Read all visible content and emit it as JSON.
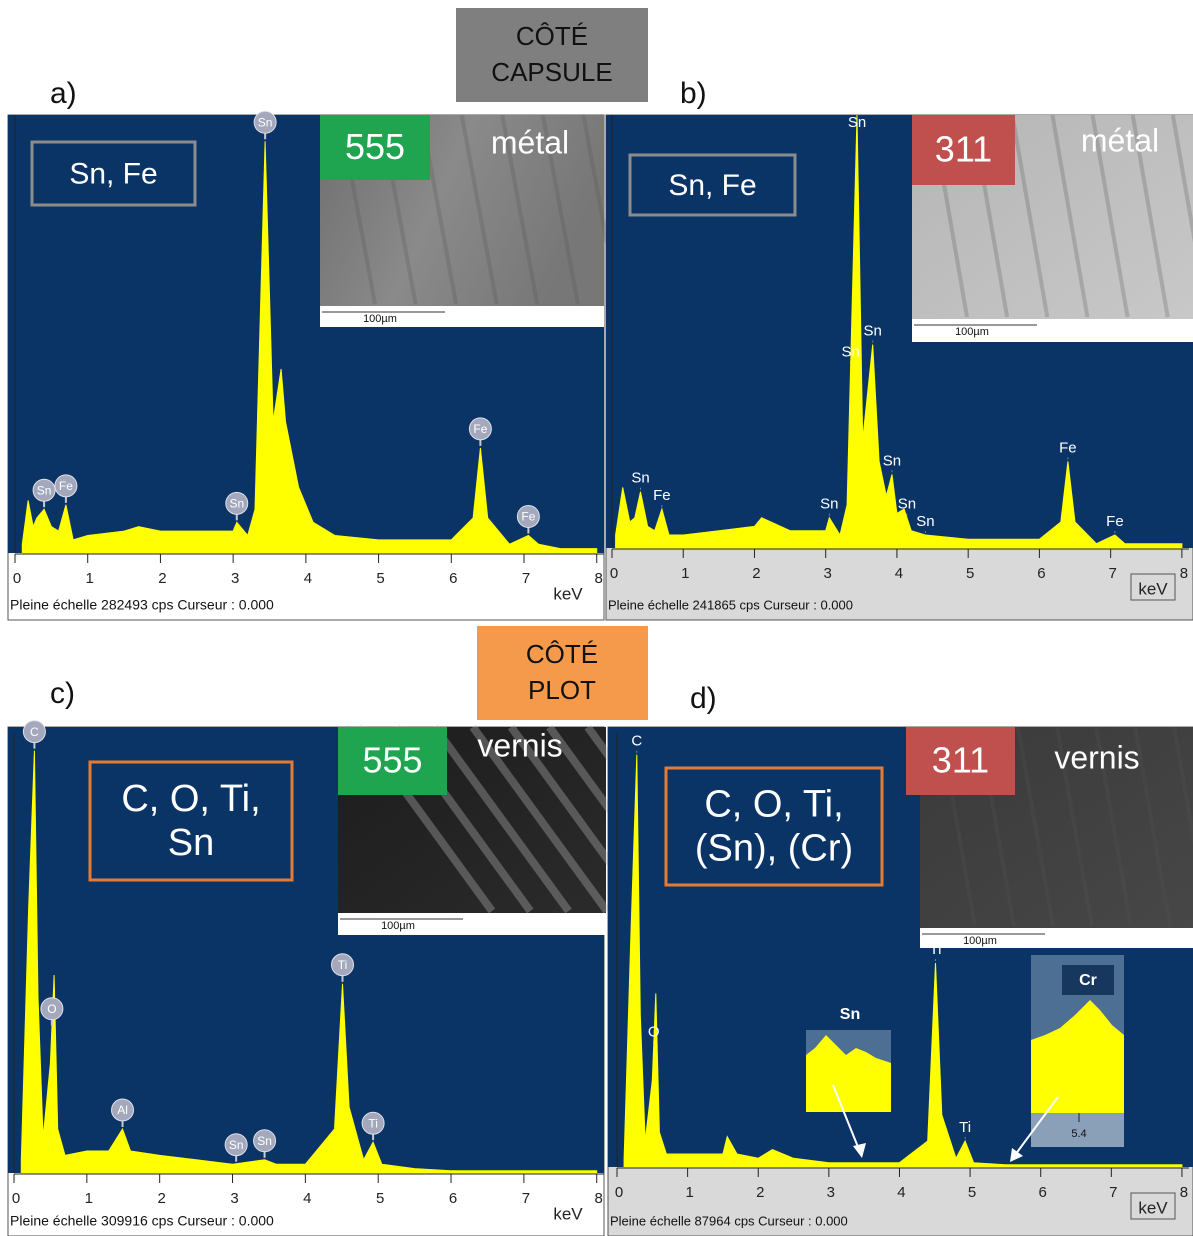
{
  "header": {
    "top_label": [
      "CÔTÉ",
      "CAPSULE"
    ],
    "bottom_label": [
      "CÔTÉ",
      "PLOT"
    ]
  },
  "chart_data": [
    {
      "type": "area",
      "panel_label": "a)",
      "color": "#ffff00",
      "background": "#0a3466",
      "axis_background": "#ffffff",
      "element_box": {
        "lines": [
          "Sn, Fe"
        ],
        "border_color": "#8c8c8c"
      },
      "inset": {
        "sample": "555",
        "sample_color": "#1fa550",
        "surface": "métal",
        "scale_bar": "100µm"
      },
      "x": [
        0.1,
        0.18,
        0.25,
        0.3,
        0.4,
        0.5,
        0.6,
        0.7,
        0.8,
        1.0,
        1.5,
        1.7,
        2.0,
        2.5,
        3.0,
        3.05,
        3.2,
        3.3,
        3.44,
        3.55,
        3.66,
        3.72,
        3.9,
        4.1,
        4.4,
        5.0,
        5.5,
        6.0,
        6.3,
        6.4,
        6.5,
        6.8,
        7.06,
        7.2,
        7.5,
        8.0
      ],
      "values": [
        2,
        12,
        6,
        8,
        10,
        6,
        5,
        11,
        3,
        4,
        5,
        6,
        5,
        5,
        5,
        7,
        4,
        10,
        94,
        30,
        42,
        30,
        15,
        7,
        4,
        3,
        3,
        3,
        8,
        24,
        8,
        2,
        4,
        2,
        1,
        1
      ],
      "xlim": [
        0,
        8.1
      ],
      "xticks": [
        0,
        1,
        2,
        3,
        4,
        5,
        6,
        7,
        8
      ],
      "ylim": [
        0,
        100
      ],
      "x_unit": "keV",
      "peak_label_style": "bubble",
      "peak_labels": [
        {
          "label": "Sn",
          "x": 0.4
        },
        {
          "label": "Fe",
          "x": 0.7
        },
        {
          "label": "Sn",
          "x": 3.05
        },
        {
          "label": "Sn",
          "x": 3.44
        },
        {
          "label": "Fe",
          "x": 6.4
        },
        {
          "label": "Fe",
          "x": 7.06
        }
      ],
      "footer": "Pleine échelle 282493 cps  Curseur : 0.000"
    },
    {
      "type": "area",
      "panel_label": "b)",
      "color": "#ffff00",
      "background": "#0a3466",
      "axis_background": "#d9d9d9",
      "element_box": {
        "lines": [
          "Sn, Fe"
        ],
        "border_color": "#8c8c8c"
      },
      "inset": {
        "sample": "311",
        "sample_color": "#c0504d",
        "surface": "métal",
        "scale_bar": "100µm"
      },
      "x": [
        0.05,
        0.15,
        0.25,
        0.32,
        0.4,
        0.5,
        0.6,
        0.7,
        0.8,
        1.0,
        1.5,
        2.0,
        2.1,
        2.5,
        3.0,
        3.05,
        3.2,
        3.3,
        3.44,
        3.52,
        3.66,
        3.75,
        3.85,
        3.93,
        4.0,
        4.1,
        4.2,
        4.4,
        5.0,
        5.5,
        6.0,
        6.3,
        6.4,
        6.5,
        6.8,
        7.06,
        7.2,
        8.0
      ],
      "values": [
        3,
        14,
        6,
        7,
        13,
        5,
        4,
        9,
        3,
        3,
        4,
        5,
        7,
        4,
        4,
        7,
        3,
        10,
        100,
        25,
        47,
        20,
        12,
        17,
        8,
        9,
        4,
        3,
        2,
        2,
        2,
        6,
        20,
        6,
        1,
        3,
        1,
        1
      ],
      "xlim": [
        0,
        8.1
      ],
      "xticks": [
        0,
        1,
        2,
        3,
        4,
        5,
        6,
        7,
        8
      ],
      "ylim": [
        0,
        100
      ],
      "x_unit": "keV",
      "peak_label_style": "text",
      "peak_labels": [
        {
          "label": "Sn",
          "x": 0.4
        },
        {
          "label": "Fe",
          "x": 0.7
        },
        {
          "label": "Sn",
          "x": 3.05
        },
        {
          "label": "Sn",
          "x": 3.35
        },
        {
          "label": "Sn",
          "x": 3.44
        },
        {
          "label": "Sn",
          "x": 3.66
        },
        {
          "label": "Sn",
          "x": 3.93
        },
        {
          "label": "Sn",
          "x": 4.14
        },
        {
          "label": "Sn",
          "x": 4.4
        },
        {
          "label": "Fe",
          "x": 6.4
        },
        {
          "label": "Fe",
          "x": 7.06
        }
      ],
      "footer": "Pleine échelle 241865 cps  Curseur : 0.000"
    },
    {
      "type": "area",
      "panel_label": "c)",
      "color": "#ffff00",
      "background": "#0a3466",
      "axis_background": "#ffffff",
      "element_box": {
        "lines": [
          "C, O, Ti,",
          "Sn"
        ],
        "border_color": "#e07b39"
      },
      "inset": {
        "sample": "555",
        "sample_color": "#1fa550",
        "surface": "vernis",
        "scale_bar": "100µm"
      },
      "x": [
        0.1,
        0.2,
        0.28,
        0.33,
        0.4,
        0.5,
        0.55,
        0.6,
        0.7,
        1.0,
        1.3,
        1.49,
        1.6,
        2.0,
        2.5,
        3.0,
        3.44,
        3.6,
        4.0,
        4.4,
        4.51,
        4.6,
        4.8,
        4.93,
        5.05,
        5.5,
        6.0,
        8.0
      ],
      "values": [
        3,
        60,
        96,
        40,
        8,
        25,
        45,
        10,
        4,
        5,
        5,
        10,
        5,
        4,
        3,
        2,
        3,
        2,
        2,
        10,
        43,
        15,
        3,
        7,
        2,
        1,
        0.5,
        0.5
      ],
      "xlim": [
        0,
        8.1
      ],
      "xticks": [
        0,
        1,
        2,
        3,
        4,
        5,
        6,
        7,
        8
      ],
      "ylim": [
        0,
        100
      ],
      "x_unit": "keV",
      "peak_label_style": "bubble",
      "peak_labels": [
        {
          "label": "C",
          "x": 0.28
        },
        {
          "label": "O",
          "x": 0.52
        },
        {
          "label": "Al",
          "x": 1.49
        },
        {
          "label": "Sn",
          "x": 3.05
        },
        {
          "label": "Sn",
          "x": 3.44
        },
        {
          "label": "Ti",
          "x": 4.51
        },
        {
          "label": "Ti",
          "x": 4.93
        }
      ],
      "footer": "Pleine échelle 309916 cps  Curseur : 0.000"
    },
    {
      "type": "area",
      "panel_label": "d)",
      "color": "#ffff00",
      "background": "#0a3466",
      "axis_background": "#d9d9d9",
      "element_box": {
        "lines": [
          "C, O, Ti,",
          "(Sn), (Cr)"
        ],
        "border_color": "#e07b39"
      },
      "inset": {
        "sample": "311",
        "sample_color": "#c0504d",
        "surface": "vernis",
        "scale_bar": "100µm"
      },
      "x": [
        0.1,
        0.2,
        0.28,
        0.33,
        0.4,
        0.5,
        0.55,
        0.6,
        0.7,
        1.0,
        1.5,
        1.56,
        1.7,
        2.0,
        2.2,
        2.5,
        3.0,
        4.0,
        4.4,
        4.51,
        4.6,
        4.8,
        4.93,
        5.05,
        5.5,
        8.0
      ],
      "values": [
        2,
        55,
        95,
        35,
        6,
        20,
        40,
        8,
        3,
        3,
        3,
        7,
        3,
        2,
        4,
        2,
        1,
        1,
        6,
        47,
        12,
        2,
        6,
        1,
        0.5,
        0.5
      ],
      "xlim": [
        0,
        8.1
      ],
      "xticks": [
        0,
        1,
        2,
        3,
        4,
        5,
        6,
        7,
        8
      ],
      "ylim": [
        0,
        100
      ],
      "x_unit": "keV",
      "peak_label_style": "text",
      "peak_labels": [
        {
          "label": "C",
          "x": 0.28
        },
        {
          "label": "O",
          "x": 0.52
        },
        {
          "label": "Ti",
          "x": 4.51
        },
        {
          "label": "Ti",
          "x": 4.93
        }
      ],
      "zoom_insets": [
        {
          "label": "Sn"
        },
        {
          "label": "Cr",
          "tick": 5.4
        }
      ],
      "footer": "Pleine échelle 87964 cps  Curseur : 0.000"
    }
  ]
}
